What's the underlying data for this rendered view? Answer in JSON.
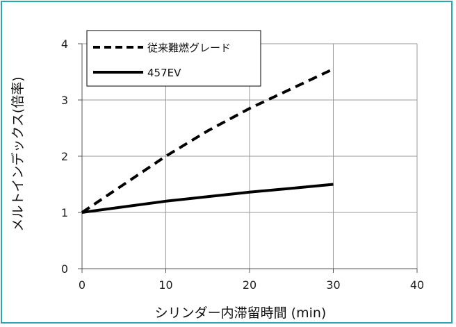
{
  "chart_data": {
    "type": "line",
    "title": "",
    "xlabel": "シリンダー内滞留時間 (min)",
    "ylabel": "メルトインデックス(倍率)",
    "xlim": [
      0,
      40
    ],
    "ylim": [
      0,
      4
    ],
    "x_ticks": [
      "0",
      "10",
      "20",
      "30",
      "40"
    ],
    "y_ticks": [
      "0",
      "1",
      "2",
      "3",
      "4"
    ],
    "grid": true,
    "legend_position": "top-left",
    "series": [
      {
        "name": "従来難燃グレード",
        "style": "dashed",
        "color": "#000000",
        "x": [
          0,
          5,
          10,
          15,
          20,
          25,
          30
        ],
        "y": [
          1.0,
          1.5,
          2.0,
          2.45,
          2.85,
          3.2,
          3.55
        ]
      },
      {
        "name": "457EV",
        "style": "solid",
        "color": "#000000",
        "x": [
          0,
          5,
          10,
          15,
          20,
          25,
          30
        ],
        "y": [
          1.0,
          1.1,
          1.2,
          1.28,
          1.36,
          1.43,
          1.5
        ]
      }
    ]
  }
}
